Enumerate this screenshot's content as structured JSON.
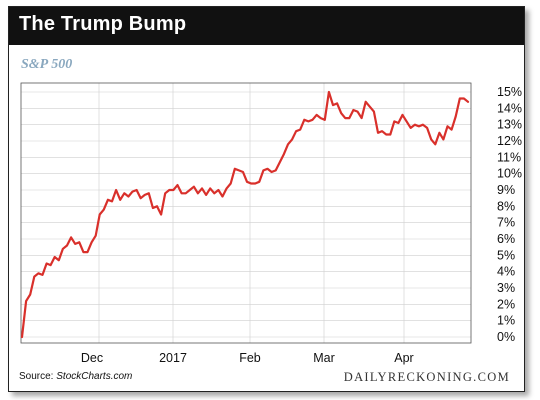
{
  "header": {
    "title": "The Trump Bump",
    "subtitle": "S&P 500"
  },
  "footer": {
    "source_prefix": "Source: ",
    "source_name": "StockCharts.com",
    "brand": "DAILYRECKONING.COM"
  },
  "chart_data": {
    "type": "line",
    "title": "The Trump Bump",
    "subtitle": "S&P 500",
    "xlabel": "",
    "ylabel": "",
    "x_tick_labels": [
      "Dec",
      "2017",
      "Feb",
      "Mar",
      "Apr"
    ],
    "y_tick_labels": [
      "0%",
      "1%",
      "2%",
      "3%",
      "4%",
      "5%",
      "6%",
      "7%",
      "8%",
      "9%",
      "10%",
      "11%",
      "12%",
      "13%",
      "14%",
      "15%"
    ],
    "ylim": [
      0,
      15
    ],
    "y_axis_side": "right",
    "grid": true,
    "line_color": "#d9302b",
    "series": [
      {
        "values": [
          0.0,
          2.2,
          2.6,
          3.7,
          3.9,
          3.8,
          4.5,
          4.4,
          4.9,
          4.7,
          5.4,
          5.6,
          6.1,
          5.7,
          5.8,
          5.2,
          5.2,
          5.8,
          6.2,
          7.5,
          7.8,
          8.4,
          8.3,
          9.0,
          8.4,
          8.8,
          8.6,
          8.9,
          9.0,
          8.5,
          8.7,
          8.8,
          7.9,
          8.0,
          7.5,
          8.8,
          9.0,
          9.0,
          9.3,
          8.8,
          8.8,
          9.0,
          9.2,
          8.8,
          9.1,
          8.7,
          9.1,
          8.8,
          9.0,
          8.6,
          9.1,
          9.4,
          10.3,
          10.2,
          10.1,
          9.5,
          9.4,
          9.4,
          9.5,
          10.2,
          10.3,
          10.1,
          10.2,
          10.7,
          11.2,
          11.8,
          12.1,
          12.6,
          12.7,
          13.3,
          13.2,
          13.3,
          13.6,
          13.4,
          13.3,
          15.0,
          14.2,
          14.3,
          13.7,
          13.4,
          13.4,
          13.9,
          13.8,
          13.4,
          14.4,
          14.1,
          13.8,
          12.5,
          12.6,
          12.4,
          12.4,
          13.2,
          13.1,
          13.6,
          13.2,
          12.8,
          13.0,
          12.9,
          13.0,
          12.8,
          12.1,
          11.8,
          12.5,
          12.1,
          12.9,
          12.7,
          13.5,
          14.6,
          14.6,
          14.4
        ]
      }
    ]
  }
}
